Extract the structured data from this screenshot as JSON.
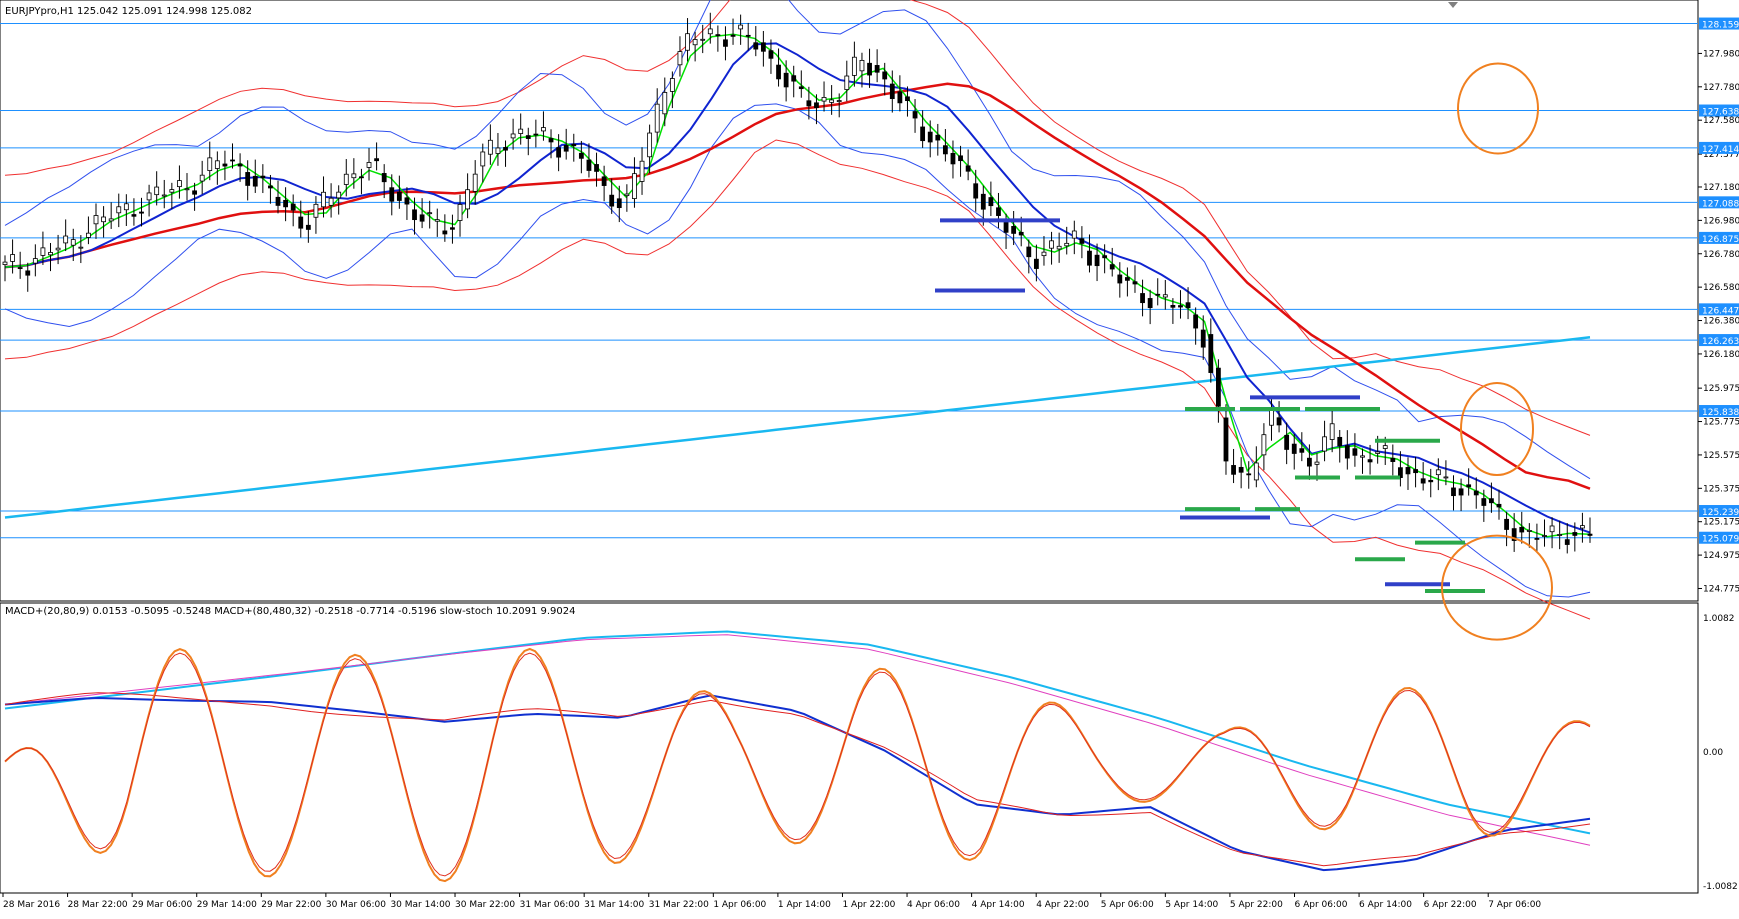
{
  "main_panel": {
    "header": "EURJPYpro,H1  125.042 125.091 124.998 125.082",
    "y_range": [
      124.7,
      128.3
    ],
    "y_ticks": [
      "127.980",
      "127.780",
      "127.580",
      "127.377",
      "127.180",
      "126.980",
      "126.780",
      "126.580",
      "126.380",
      "126.180",
      "125.975",
      "125.775",
      "125.575",
      "125.375",
      "125.175",
      "124.975",
      "124.775"
    ],
    "horizontal_levels": [
      {
        "label": "128.159",
        "value": 128.159
      },
      {
        "label": "127.638",
        "value": 127.638
      },
      {
        "label": "127.414",
        "value": 127.414
      },
      {
        "label": "127.088",
        "value": 127.088
      },
      {
        "label": "126.875",
        "value": 126.875
      },
      {
        "label": "126.447",
        "value": 126.447
      },
      {
        "label": "126.263",
        "value": 126.263
      },
      {
        "label": "125.838",
        "value": 125.838
      },
      {
        "label": "125.239",
        "value": 125.239
      },
      {
        "label": "125.079",
        "value": 125.079
      }
    ],
    "colors": {
      "level_line": "#1e90ff",
      "level_label_bg": "#1e90ff",
      "bull_candle": "#ffffff",
      "bear_candle": "#000000",
      "ma_green": "#00e000",
      "ma_blue": "#1024d0",
      "ma_red": "#e01010",
      "ma_cyan": "#19b8f0",
      "bands_red": "#f03030",
      "bands_blue": "#3050ee",
      "marker_blue": "#3040c8",
      "marker_green": "#2aa84a",
      "highlight_circle": "#f08020"
    },
    "chart_data": {
      "type": "candlestick",
      "symbol": "EURJPYpro",
      "timeframe": "H1",
      "ohlc_last": {
        "open": 125.042,
        "high": 125.091,
        "low": 124.998,
        "close": 125.082
      },
      "close_path": [
        126.7,
        126.72,
        126.8,
        126.83,
        126.95,
        127.01,
        127.06,
        127.13,
        127.17,
        127.22,
        127.34,
        127.3,
        127.17,
        127.08,
        126.95,
        127.1,
        127.25,
        127.31,
        127.16,
        127.03,
        126.94,
        126.97,
        127.3,
        127.45,
        127.5,
        127.48,
        127.43,
        127.34,
        127.16,
        127.08,
        127.45,
        127.87,
        128.06,
        128.1,
        128.09,
        128.05,
        127.9,
        127.72,
        127.68,
        127.75,
        127.95,
        127.83,
        127.64,
        127.5,
        127.38,
        127.22,
        127.05,
        126.89,
        126.76,
        126.82,
        126.87,
        126.74,
        126.63,
        126.55,
        126.48,
        126.47,
        126.28,
        125.53,
        125.43,
        125.8,
        125.62,
        125.53,
        125.7,
        125.56,
        125.58,
        125.52,
        125.43,
        125.42,
        125.38,
        125.3,
        125.18,
        125.08,
        125.09,
        125.12,
        125.08
      ],
      "moving_averages": [
        "green (fast)",
        "blue",
        "red",
        "cyan (slow)"
      ],
      "bands": [
        "red envelope",
        "blue bollinger"
      ]
    }
  },
  "indicator_panel": {
    "header": "MACD+(20,80,9) 0.0153 -0.5095 -0.5248  MACD+(80,480,32) -0.2518 -0.7714 -0.5196  slow-stoch 10.2091 9.9024",
    "y_labels": [
      "1.0082",
      "0.00",
      "-1.0082"
    ],
    "y_range": [
      -1.0082,
      1.0082
    ],
    "chart_data": {
      "type": "line",
      "series_colors": {
        "stoch_main": "#f08020",
        "stoch_signal": "#e03020",
        "macd_fast": "#1030d0",
        "macd_fast_signal": "#e02020",
        "macd_slow": "#19b8f0",
        "macd_slow_signal": "#e040c0"
      },
      "stoch_cycle_peaks": [
        0.02,
        0.88,
        0.85,
        0.82,
        0.92,
        0.75,
        0.48,
        0.72,
        0.72,
        0.3,
        0.25,
        0.55,
        0.6,
        0.3
      ],
      "macd_fast_path": [
        0.35,
        0.4,
        0.38,
        0.37,
        0.3,
        0.22,
        0.28,
        0.25,
        0.42,
        0.3,
        0.0,
        -0.4,
        -0.48,
        -0.42,
        -0.75,
        -0.9,
        -0.82,
        -0.6,
        -0.51
      ],
      "macd_slow_path": [
        0.32,
        0.45,
        0.58,
        0.72,
        0.85,
        0.9,
        0.8,
        0.55,
        0.25,
        -0.1,
        -0.4,
        -0.62
      ]
    }
  },
  "x_axis": {
    "labels": [
      "28 Mar 2016",
      "28 Mar 22:00",
      "29 Mar 06:00",
      "29 Mar 14:00",
      "29 Mar 22:00",
      "30 Mar 06:00",
      "30 Mar 14:00",
      "30 Mar 22:00",
      "31 Mar 06:00",
      "31 Mar 14:00",
      "31 Mar 22:00",
      "1 Apr 06:00",
      "1 Apr 14:00",
      "1 Apr 22:00",
      "4 Apr 06:00",
      "4 Apr 14:00",
      "4 Apr 22:00",
      "5 Apr 06:00",
      "5 Apr 14:00",
      "5 Apr 22:00",
      "6 Apr 06:00",
      "6 Apr 14:00",
      "6 Apr 22:00",
      "7 Apr 06:00"
    ]
  }
}
